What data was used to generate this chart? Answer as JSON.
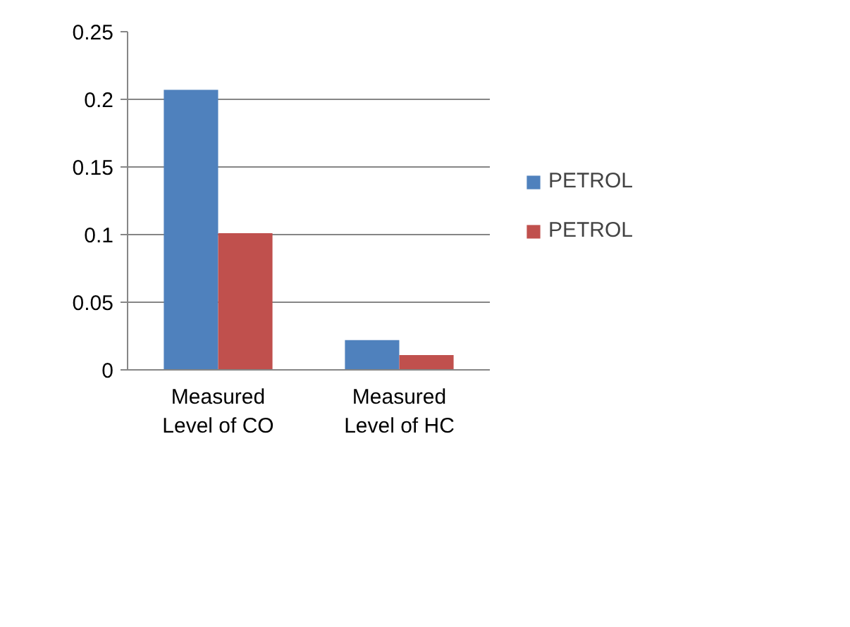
{
  "chart_data": {
    "type": "bar",
    "categories": [
      "Measured Level of CO",
      "Measured Level of HC"
    ],
    "series": [
      {
        "name": "PETROL",
        "color": "#4f81bd",
        "values": [
          0.207,
          0.022
        ]
      },
      {
        "name": "PETROL",
        "color": "#c0504d",
        "values": [
          0.101,
          0.011
        ]
      }
    ],
    "ylim": [
      0,
      0.25
    ],
    "yticks": [
      0,
      0.05,
      0.1,
      0.15,
      0.2,
      0.25
    ],
    "grid": "y",
    "legend": "right"
  }
}
